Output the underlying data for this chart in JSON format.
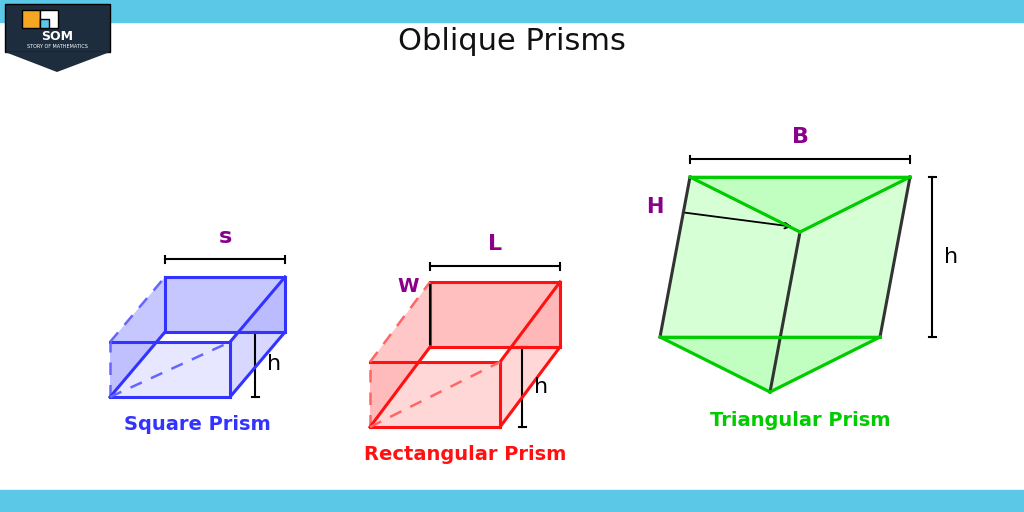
{
  "title": "Oblique Prisms",
  "title_fontsize": 22,
  "title_color": "#111111",
  "bg_color": "#ffffff",
  "border_top_color": "#5bc8e8",
  "border_bottom_color": "#5bc8e8",
  "label_color_purple": "#8B008B",
  "label_color_blue": "#3333ff",
  "label_color_red": "#ff1111",
  "label_color_green": "#00cc00",
  "prism_colors": {
    "square": {
      "face": "#b0b0ff",
      "edge": "#3333ff",
      "dashed": "#6666ff"
    },
    "rect": {
      "face": "#ffb0b0",
      "edge": "#ff1111",
      "dashed": "#ff6666"
    },
    "tri": {
      "face": "#b0ffb0",
      "edge": "#00cc00",
      "dashed": "#00cc00"
    }
  },
  "labels": {
    "square_name": "Square Prism",
    "rect_name": "Rectangular Prism",
    "tri_name": "Triangular Prism"
  }
}
